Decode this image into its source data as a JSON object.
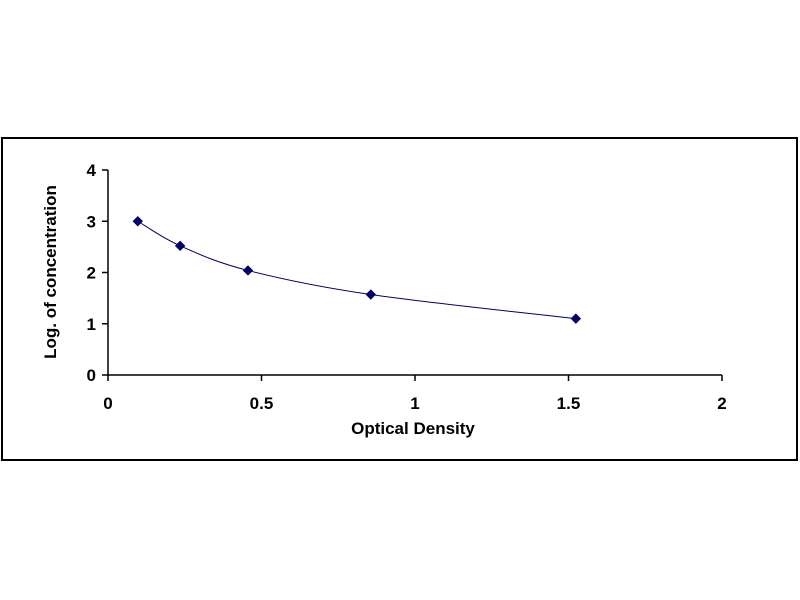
{
  "chart_data": {
    "type": "scatter",
    "title": "",
    "xlabel": "Optical Density",
    "ylabel": "Log. of concentration",
    "xlim": [
      0,
      2
    ],
    "ylim": [
      0,
      4
    ],
    "xticks": [
      0,
      0.5,
      1,
      1.5,
      2
    ],
    "xtick_labels": [
      "0",
      "0.5",
      "1",
      "1.5",
      "2"
    ],
    "yticks": [
      0,
      1,
      2,
      3,
      4
    ],
    "ytick_labels": [
      "0",
      "1",
      "2",
      "3",
      "4"
    ],
    "grid": false,
    "legend": "none",
    "series": [
      {
        "marker": "diamond",
        "line": "smooth",
        "color": "#000066",
        "x": [
          0.097,
          0.235,
          0.456,
          0.856,
          1.524
        ],
        "y": [
          3.0,
          2.52,
          2.04,
          1.57,
          1.1
        ]
      }
    ]
  }
}
